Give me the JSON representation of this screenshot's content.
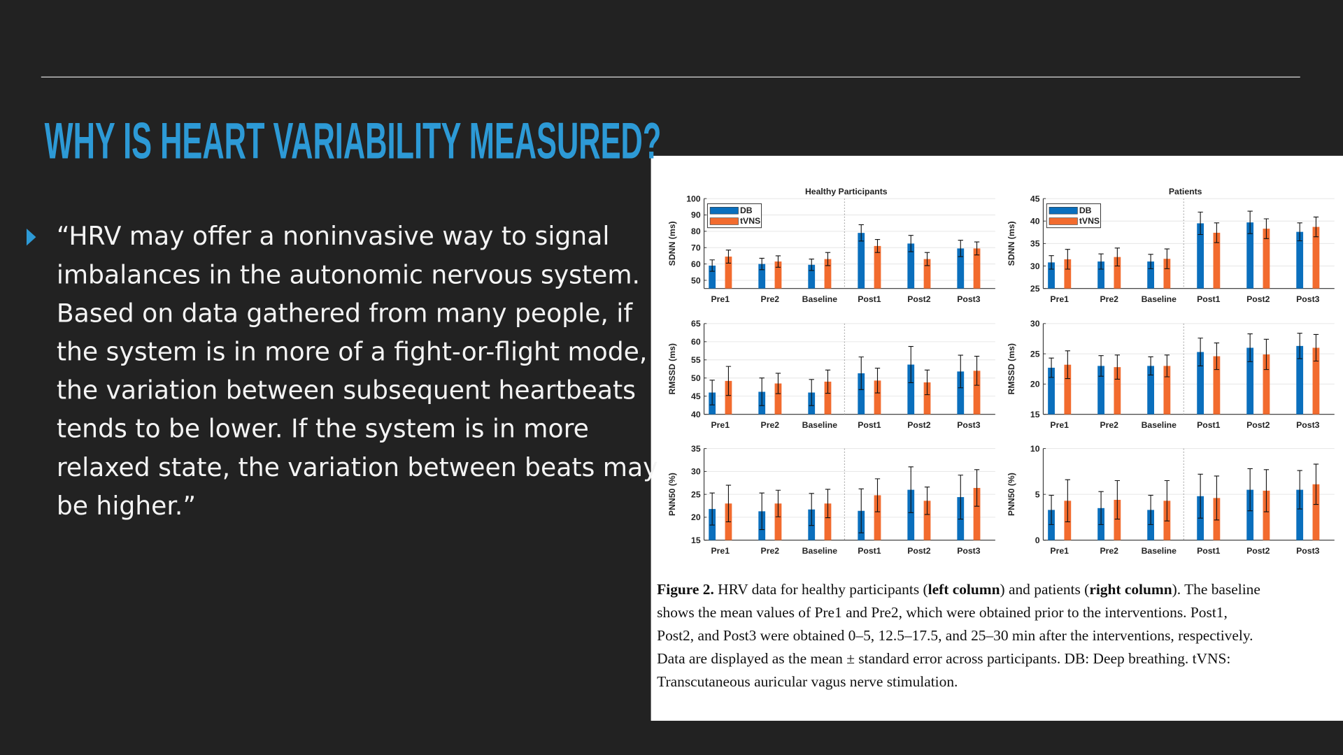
{
  "slide": {
    "title": "WHY IS HEART VARIABILITY MEASURED?",
    "bullet": [
      "“HRV may offer a noninvasive way to signal",
      "imbalances in the autonomic nervous system.",
      "Based on data gathered from many people, if",
      "the system is in more of a fight-or-flight mode,",
      "the variation between subsequent heartbeats",
      "tends to be lower. If the system is in more",
      "relaxed state, the variation between beats may",
      "be higher.”"
    ]
  },
  "chart_data": [
    {
      "type": "bar",
      "title": "Healthy Participants",
      "ylabel": "SDNN (ms)",
      "categories": [
        "Pre1",
        "Pre2",
        "Baseline",
        "Post1",
        "Post2",
        "Post3"
      ],
      "series": [
        {
          "name": "DB",
          "color": "#0a6fbd",
          "values": [
            59,
            60,
            59.5,
            79,
            72.5,
            69.5
          ],
          "errors": [
            3.5,
            3.5,
            3.5,
            5,
            5,
            5
          ]
        },
        {
          "name": "tVNS",
          "color": "#f26b2e",
          "values": [
            64.5,
            61.5,
            63,
            71,
            63,
            69.5
          ],
          "errors": [
            4,
            3.5,
            4,
            4,
            4,
            4
          ]
        }
      ],
      "ylim": [
        45,
        100
      ],
      "yticks": [
        50,
        60,
        70,
        80,
        90,
        100
      ],
      "grid": true,
      "legend": "upper left"
    },
    {
      "type": "bar",
      "title": "Patients",
      "ylabel": "SDNN (ms)",
      "categories": [
        "Pre1",
        "Pre2",
        "Baseline",
        "Post1",
        "Post2",
        "Post3"
      ],
      "series": [
        {
          "name": "DB",
          "color": "#0a6fbd",
          "values": [
            30.8,
            31,
            31,
            39.5,
            39.7,
            37.6
          ],
          "errors": [
            1.5,
            1.7,
            1.6,
            2.5,
            2.5,
            2
          ]
        },
        {
          "name": "tVNS",
          "color": "#f26b2e",
          "values": [
            31.5,
            32,
            31.6,
            37.4,
            38.3,
            38.7
          ],
          "errors": [
            2.2,
            2,
            2.2,
            2.2,
            2.2,
            2.2
          ]
        }
      ],
      "ylim": [
        25,
        45
      ],
      "yticks": [
        25,
        30,
        35,
        40,
        45
      ],
      "grid": true,
      "legend": "upper left"
    },
    {
      "type": "bar",
      "ylabel": "RMSSD (ms)",
      "categories": [
        "Pre1",
        "Pre2",
        "Baseline",
        "Post1",
        "Post2",
        "Post3"
      ],
      "series": [
        {
          "color": "#0a6fbd",
          "values": [
            46,
            46.2,
            46,
            51.3,
            53.7,
            51.8
          ],
          "errors": [
            3.4,
            3.8,
            3.6,
            4.5,
            5,
            4.5
          ]
        },
        {
          "color": "#f26b2e",
          "values": [
            49.2,
            48.5,
            49,
            49.3,
            48.8,
            52
          ],
          "errors": [
            4,
            2.8,
            3.2,
            3.4,
            3.4,
            4
          ]
        }
      ],
      "ylim": [
        40,
        65
      ],
      "yticks": [
        40,
        45,
        50,
        55,
        60,
        65
      ],
      "grid": true
    },
    {
      "type": "bar",
      "ylabel": "RMSSD (ms)",
      "categories": [
        "Pre1",
        "Pre2",
        "Baseline",
        "Post1",
        "Post2",
        "Post3"
      ],
      "series": [
        {
          "color": "#0a6fbd",
          "values": [
            22.7,
            23,
            23,
            25.3,
            26,
            26.3
          ],
          "errors": [
            1.6,
            1.7,
            1.5,
            2.3,
            2.3,
            2.1
          ]
        },
        {
          "color": "#f26b2e",
          "values": [
            23.2,
            22.8,
            23,
            24.6,
            24.9,
            26
          ],
          "errors": [
            2.3,
            2,
            1.8,
            2.2,
            2.5,
            2.2
          ]
        }
      ],
      "ylim": [
        15,
        30
      ],
      "yticks": [
        15,
        20,
        25,
        30
      ],
      "grid": true
    },
    {
      "type": "bar",
      "ylabel": "PNN50 (%)",
      "categories": [
        "Pre1",
        "Pre2",
        "Baseline",
        "Post1",
        "Post2",
        "Post3"
      ],
      "series": [
        {
          "color": "#0a6fbd",
          "values": [
            21.8,
            21.3,
            21.7,
            21.4,
            26,
            24.4
          ],
          "errors": [
            3.5,
            4,
            3.5,
            4.8,
            5,
            4.8
          ]
        },
        {
          "color": "#f26b2e",
          "values": [
            23,
            23,
            23,
            24.8,
            23.6,
            26.4
          ],
          "errors": [
            4,
            2.9,
            3.1,
            3.6,
            3,
            4
          ]
        }
      ],
      "ylim": [
        15,
        35
      ],
      "yticks": [
        15,
        20,
        25,
        30,
        35
      ],
      "grid": true
    },
    {
      "type": "bar",
      "ylabel": "PNN50 (%)",
      "categories": [
        "Pre1",
        "Pre2",
        "Baseline",
        "Post1",
        "Post2",
        "Post3"
      ],
      "series": [
        {
          "color": "#0a6fbd",
          "values": [
            3.3,
            3.5,
            3.3,
            4.8,
            5.5,
            5.5
          ],
          "errors": [
            1.6,
            1.8,
            1.6,
            2.4,
            2.3,
            2.1
          ]
        },
        {
          "color": "#f26b2e",
          "values": [
            4.3,
            4.4,
            4.3,
            4.6,
            5.4,
            6.1
          ],
          "errors": [
            2.3,
            2.1,
            2.2,
            2.4,
            2.3,
            2.2
          ]
        }
      ],
      "ylim": [
        0,
        10
      ],
      "yticks": [
        0,
        5,
        10
      ],
      "grid": true
    }
  ],
  "caption": [
    [
      {
        "text": "Figure 2.",
        "bold": true
      },
      " HRV data for healthy participants (",
      {
        "text": "left column",
        "bold": true
      },
      ") and patients (",
      {
        "text": "right column",
        "bold": true
      },
      "). The baseline"
    ],
    [
      "shows the mean values of Pre1 and Pre2, which were obtained prior to the interventions. Post1,"
    ],
    [
      "Post2, and Post3 were obtained 0–5, 12.5–17.5, and 25–30 min after the interventions, respectively."
    ],
    [
      "Data are displayed as the mean ± standard error across participants. DB: Deep breathing. tVNS:"
    ],
    [
      "Transcutaneous auricular vagus nerve stimulation."
    ]
  ]
}
